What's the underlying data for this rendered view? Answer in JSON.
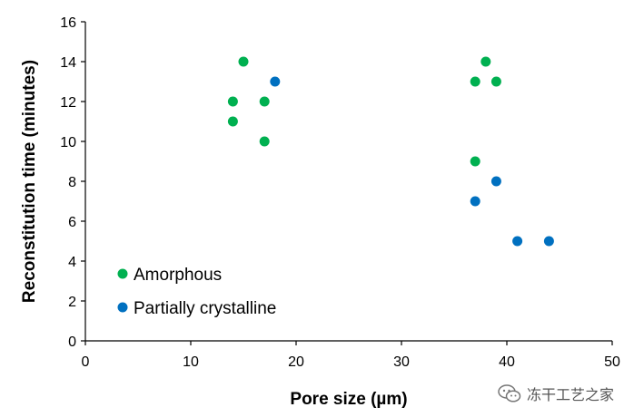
{
  "chart_data": {
    "type": "scatter",
    "title": "",
    "xlabel": "Pore size (µm)",
    "ylabel": "Reconstitution  time  (minutes)",
    "xlim": [
      0,
      50
    ],
    "ylim": [
      0,
      16
    ],
    "xticks": [
      0,
      10,
      20,
      30,
      40,
      50
    ],
    "yticks": [
      0,
      2,
      4,
      6,
      8,
      10,
      12,
      14,
      16
    ],
    "grid": false,
    "legend_position": "bottom-left",
    "series": [
      {
        "name": "Amorphous",
        "color": "#00b050",
        "points": [
          {
            "x": 14,
            "y": 12
          },
          {
            "x": 14,
            "y": 11
          },
          {
            "x": 15,
            "y": 14
          },
          {
            "x": 17,
            "y": 12
          },
          {
            "x": 17,
            "y": 10
          },
          {
            "x": 37,
            "y": 13
          },
          {
            "x": 38,
            "y": 14
          },
          {
            "x": 39,
            "y": 13
          },
          {
            "x": 37,
            "y": 9
          }
        ]
      },
      {
        "name": "Partially crystalline",
        "color": "#0070c0",
        "points": [
          {
            "x": 18,
            "y": 13
          },
          {
            "x": 37,
            "y": 7
          },
          {
            "x": 39,
            "y": 8
          },
          {
            "x": 41,
            "y": 5
          },
          {
            "x": 44,
            "y": 5
          }
        ]
      }
    ]
  },
  "watermark": {
    "text": "冻干工艺之家",
    "icon": "wechat-icon"
  }
}
